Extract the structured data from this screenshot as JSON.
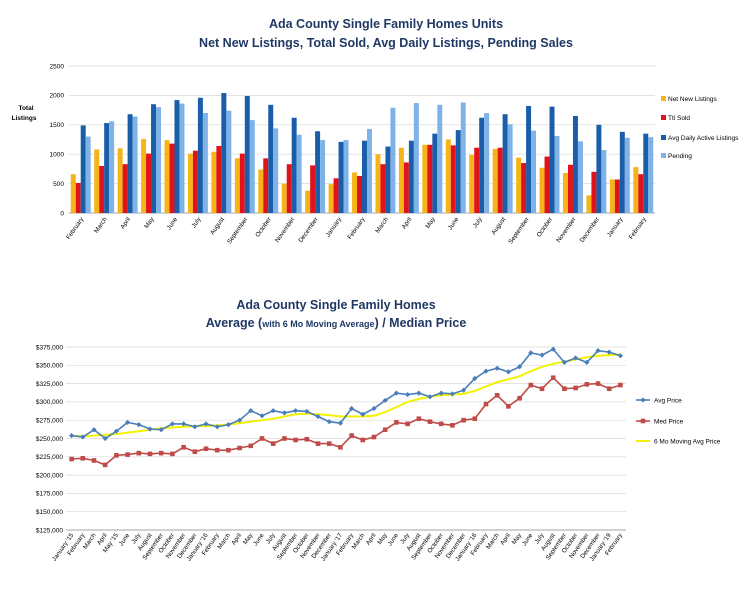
{
  "chart_data": [
    {
      "type": "bar",
      "title": "Ada County Single Family Homes Units",
      "subtitle": "Net New Listings, Total Sold, Avg Daily Listings, Pending Sales",
      "ylabel": "Total Listings",
      "ylim": [
        0,
        2500
      ],
      "yticks": [
        0,
        500,
        1000,
        1500,
        2000,
        2500
      ],
      "legend_position": "right",
      "categories": [
        "February",
        "March",
        "April",
        "May",
        "June",
        "July",
        "August",
        "September",
        "October",
        "November",
        "December",
        "January",
        "February",
        "March",
        "April",
        "May",
        "June",
        "July",
        "August",
        "September",
        "October",
        "November",
        "December",
        "January",
        "February"
      ],
      "series": [
        {
          "name": "Net New Listings",
          "color": "#f5b51a",
          "values": [
            660,
            1080,
            1100,
            1260,
            1240,
            1010,
            1040,
            930,
            740,
            500,
            380,
            490,
            690,
            1000,
            1110,
            1160,
            1250,
            990,
            1090,
            940,
            770,
            680,
            300,
            570,
            780
          ]
        },
        {
          "name": "Ttl Sold",
          "color": "#e0131b",
          "values": [
            510,
            800,
            830,
            1010,
            1180,
            1060,
            1140,
            1010,
            930,
            830,
            810,
            590,
            630,
            830,
            860,
            1160,
            1150,
            1110,
            1110,
            850,
            960,
            820,
            700,
            570,
            660
          ]
        },
        {
          "name": "Avg Daily Active Listings",
          "color": "#1a5da8",
          "values": [
            1490,
            1530,
            1680,
            1850,
            1920,
            1960,
            2040,
            1990,
            1840,
            1620,
            1390,
            1210,
            1230,
            1130,
            1230,
            1350,
            1410,
            1620,
            1680,
            1820,
            1810,
            1650,
            1500,
            1380,
            1350
          ]
        },
        {
          "name": "Pending",
          "color": "#7fb3e8",
          "values": [
            1300,
            1560,
            1640,
            1800,
            1860,
            1700,
            1740,
            1580,
            1440,
            1330,
            1240,
            1240,
            1430,
            1790,
            1870,
            1840,
            1880,
            1700,
            1510,
            1400,
            1310,
            1220,
            1070,
            1280,
            1290
          ]
        }
      ]
    },
    {
      "type": "line",
      "title": "Ada County Single Family Homes",
      "subtitle_prefix": "Average (",
      "subtitle_small": "with 6 Mo Moving Average",
      "subtitle_suffix": ") / Median Price",
      "ylim": [
        125000,
        375000
      ],
      "yticks": [
        125000,
        150000,
        175000,
        200000,
        225000,
        250000,
        275000,
        300000,
        325000,
        350000,
        375000
      ],
      "ytick_labels": [
        "$125,000",
        "$150,000",
        "$175,000",
        "$200,000",
        "$225,000",
        "$250,000",
        "$275,000",
        "$300,000",
        "$325,000",
        "$350,000",
        "$375,000"
      ],
      "legend_position": "right",
      "categories": [
        "January '15",
        "February",
        "March",
        "April",
        "May '15",
        "June",
        "July",
        "August",
        "September",
        "October",
        "November",
        "December",
        "January '16",
        "February",
        "March",
        "April",
        "May",
        "June",
        "July",
        "August",
        "September",
        "October",
        "November",
        "December",
        "January '17",
        "February",
        "March",
        "April",
        "May",
        "June",
        "July",
        "August",
        "September",
        "October",
        "November",
        "December",
        "January '18",
        "February",
        "March",
        "April",
        "May",
        "June",
        "July",
        "August",
        "September",
        "October",
        "November",
        "December",
        "January '19",
        "February"
      ],
      "series": [
        {
          "name": "Avg Price",
          "color": "#4a7ebb",
          "values": [
            254000,
            252000,
            262000,
            250000,
            260000,
            272000,
            269000,
            263000,
            262000,
            270000,
            270000,
            266000,
            270000,
            266000,
            269000,
            275000,
            288000,
            281000,
            288000,
            285000,
            288000,
            287000,
            280000,
            273000,
            271000,
            291000,
            283000,
            291000,
            302000,
            312000,
            310000,
            312000,
            307000,
            312000,
            311000,
            316000,
            332000,
            342000,
            346000,
            341000,
            348000,
            367000,
            364000,
            372000,
            354000,
            360000,
            354000,
            370000,
            368000,
            363000
          ]
        },
        {
          "name": "Med Price",
          "color": "#be4b48",
          "values": [
            222000,
            223000,
            220000,
            214000,
            227000,
            228000,
            230000,
            229000,
            230000,
            229000,
            238000,
            232000,
            236000,
            234000,
            234000,
            237000,
            240000,
            250000,
            243000,
            250000,
            248000,
            249000,
            243000,
            243000,
            238000,
            254000,
            248000,
            252000,
            262000,
            272000,
            270000,
            277000,
            273000,
            270000,
            268000,
            275000,
            277000,
            297000,
            309000,
            294000,
            305000,
            323000,
            318000,
            333000,
            318000,
            319000,
            324000,
            325000,
            318000,
            323000
          ]
        },
        {
          "name": "6 Mo Moving Avg Price",
          "color": "#f2f200",
          "values": [
            254000,
            253000,
            254000,
            255000,
            256000,
            258000,
            260000,
            262000,
            264000,
            265000,
            266000,
            267000,
            267000,
            268000,
            269000,
            271000,
            273000,
            275000,
            277000,
            280000,
            283000,
            284000,
            283000,
            282000,
            280000,
            280000,
            280000,
            281000,
            286000,
            293000,
            300000,
            304000,
            307000,
            309000,
            310000,
            311000,
            315000,
            321000,
            327000,
            331000,
            335000,
            342000,
            348000,
            352000,
            355000,
            358000,
            361000,
            363000,
            364000,
            365000
          ]
        }
      ]
    }
  ]
}
